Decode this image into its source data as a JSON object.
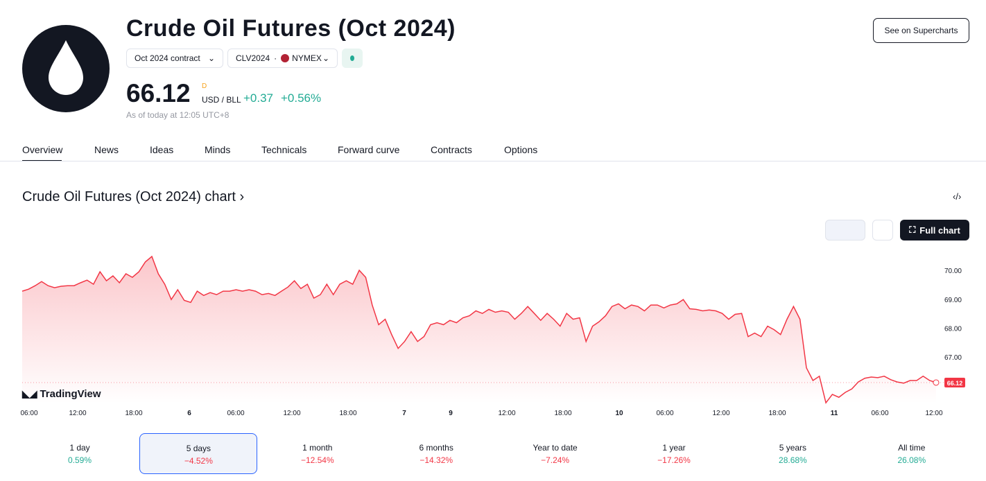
{
  "header": {
    "title": "Crude Oil Futures (Oct 2024)",
    "contract": "Oct 2024 contract",
    "symbol": "CLV2024",
    "exchange": "NYMEX",
    "price": "66.12",
    "price_flag": "D",
    "currency": "USD / BLL",
    "change": "+0.37",
    "change_pct": "+0.56%",
    "as_of": "As of today at 12:05 UTC+8",
    "button": "See on Supercharts"
  },
  "tabs": [
    "Overview",
    "News",
    "Ideas",
    "Minds",
    "Technicals",
    "Forward curve",
    "Contracts",
    "Options"
  ],
  "chart_section": {
    "title": "Crude Oil Futures (Oct 2024) chart",
    "full_chart": "Full chart",
    "watermark": "TradingView"
  },
  "chart_data": {
    "type": "line",
    "color": "#f23645",
    "values": [
      69.28,
      69.35,
      69.47,
      69.61,
      69.47,
      69.4,
      69.45,
      69.47,
      69.47,
      69.57,
      69.66,
      69.52,
      69.95,
      69.64,
      69.81,
      69.57,
      69.88,
      69.76,
      69.95,
      70.29,
      70.48,
      69.88,
      69.52,
      68.99,
      69.33,
      68.96,
      68.89,
      69.28,
      69.13,
      69.23,
      69.16,
      69.28,
      69.28,
      69.33,
      69.28,
      69.33,
      69.28,
      69.16,
      69.2,
      69.13,
      69.28,
      69.42,
      69.64,
      69.37,
      69.52,
      69.04,
      69.16,
      69.52,
      69.16,
      69.52,
      69.64,
      69.52,
      70.0,
      69.76,
      68.8,
      68.12,
      68.31,
      67.78,
      67.3,
      67.54,
      67.88,
      67.54,
      67.71,
      68.12,
      68.19,
      68.12,
      68.27,
      68.19,
      68.36,
      68.43,
      68.6,
      68.51,
      68.65,
      68.55,
      68.6,
      68.55,
      68.31,
      68.51,
      68.75,
      68.51,
      68.27,
      68.51,
      68.31,
      68.07,
      68.51,
      68.31,
      68.36,
      67.54,
      68.07,
      68.22,
      68.43,
      68.75,
      68.84,
      68.67,
      68.8,
      68.75,
      68.6,
      68.8,
      68.8,
      68.7,
      68.8,
      68.84,
      68.99,
      68.67,
      68.65,
      68.6,
      68.63,
      68.6,
      68.51,
      68.31,
      68.48,
      68.51,
      67.71,
      67.83,
      67.71,
      68.07,
      67.95,
      67.78,
      68.31,
      68.75,
      68.31,
      66.63,
      66.19,
      66.34,
      65.42,
      65.71,
      65.61,
      65.78,
      65.9,
      66.14,
      66.27,
      66.31,
      66.29,
      66.34,
      66.22,
      66.14,
      66.1,
      66.19,
      66.19,
      66.34,
      66.19,
      66.12
    ],
    "last_label": "66.12",
    "ylim": [
      65.4,
      70.6
    ],
    "yticks": [
      {
        "value": 67,
        "label": "67.00"
      },
      {
        "value": 68,
        "label": "68.00"
      },
      {
        "value": 69,
        "label": "69.00"
      },
      {
        "value": 70,
        "label": "70.00"
      }
    ],
    "x_labels": [
      "06:00",
      "12:00",
      "18:00",
      "6",
      "06:00",
      "12:00",
      "18:00",
      "7",
      "9",
      "12:00",
      "18:00",
      "10",
      "06:00",
      "12:00",
      "18:00",
      "11",
      "06:00",
      "12:00"
    ]
  },
  "periods": [
    {
      "label": "1 day",
      "change": "0.59%"
    },
    {
      "label": "5 days",
      "change": "−4.52%"
    },
    {
      "label": "1 month",
      "change": "−12.54%"
    },
    {
      "label": "6 months",
      "change": "−14.32%"
    },
    {
      "label": "Year to date",
      "change": "−7.24%"
    },
    {
      "label": "1 year",
      "change": "−17.26%"
    },
    {
      "label": "5 years",
      "change": "28.68%"
    },
    {
      "label": "All time",
      "change": "26.08%"
    }
  ]
}
